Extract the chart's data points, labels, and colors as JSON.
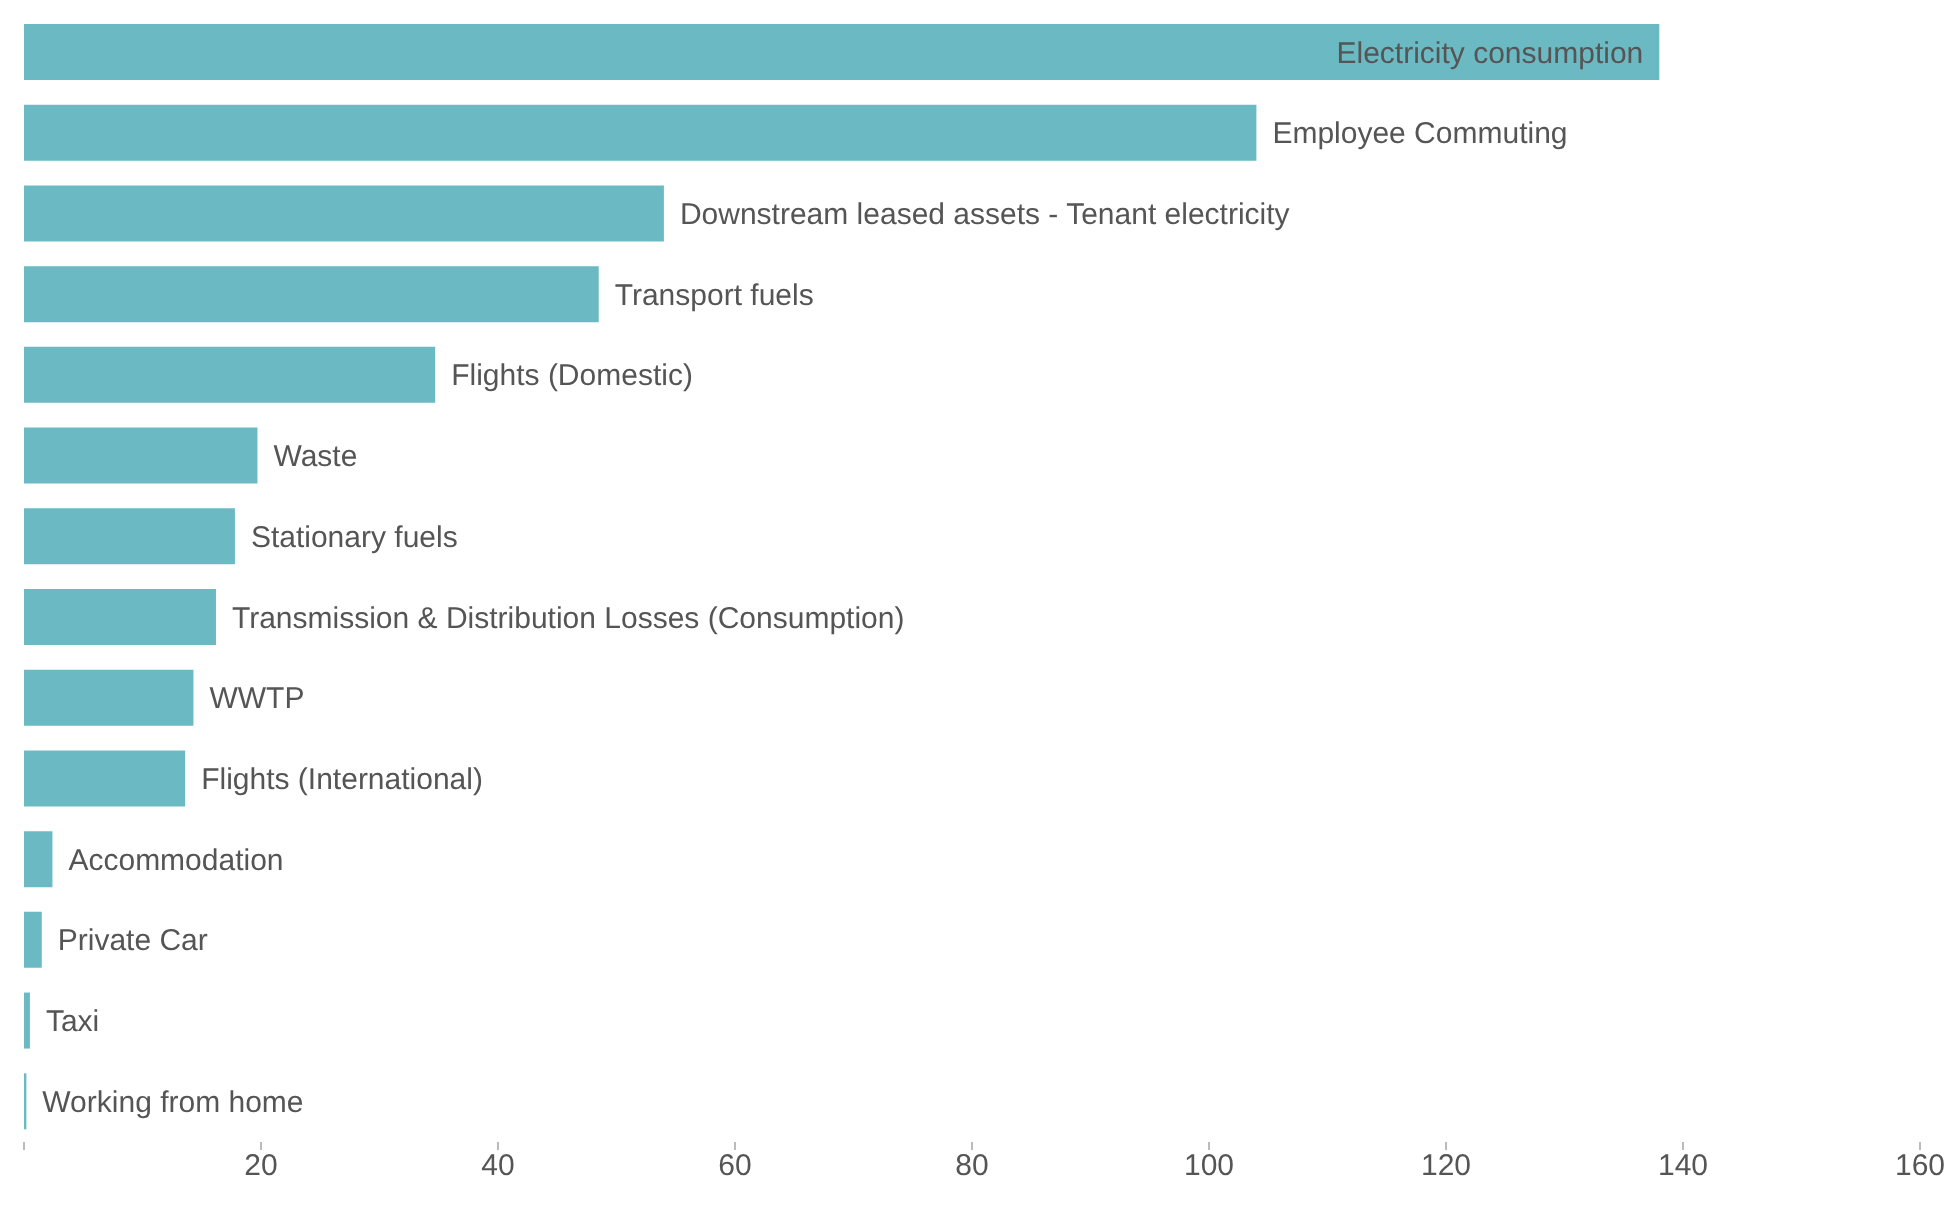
{
  "chart_data": {
    "type": "bar",
    "orientation": "horizontal",
    "categories": [
      "Electricity consumption",
      "Employee Commuting",
      "Downstream leased assets - Tenant electricity",
      "Transport fuels",
      "Flights (Domestic)",
      "Waste",
      "Stationary fuels",
      "Transmission & Distribution Losses (Consumption)",
      "WWTP",
      "Flights (International)",
      "Accommodation",
      "Private Car",
      "Taxi",
      "Working from home"
    ],
    "values": [
      138,
      104,
      54,
      48.5,
      34.7,
      19.7,
      17.8,
      16.2,
      14.3,
      13.6,
      2.4,
      1.5,
      0.5,
      0.2
    ],
    "color": "#6bb9c3",
    "xlim": [
      0,
      160
    ],
    "xticks": [
      {
        "value": 0,
        "label": null
      },
      20,
      40,
      60,
      80,
      100,
      120,
      140,
      160
    ],
    "grid": false,
    "legend": false
  }
}
